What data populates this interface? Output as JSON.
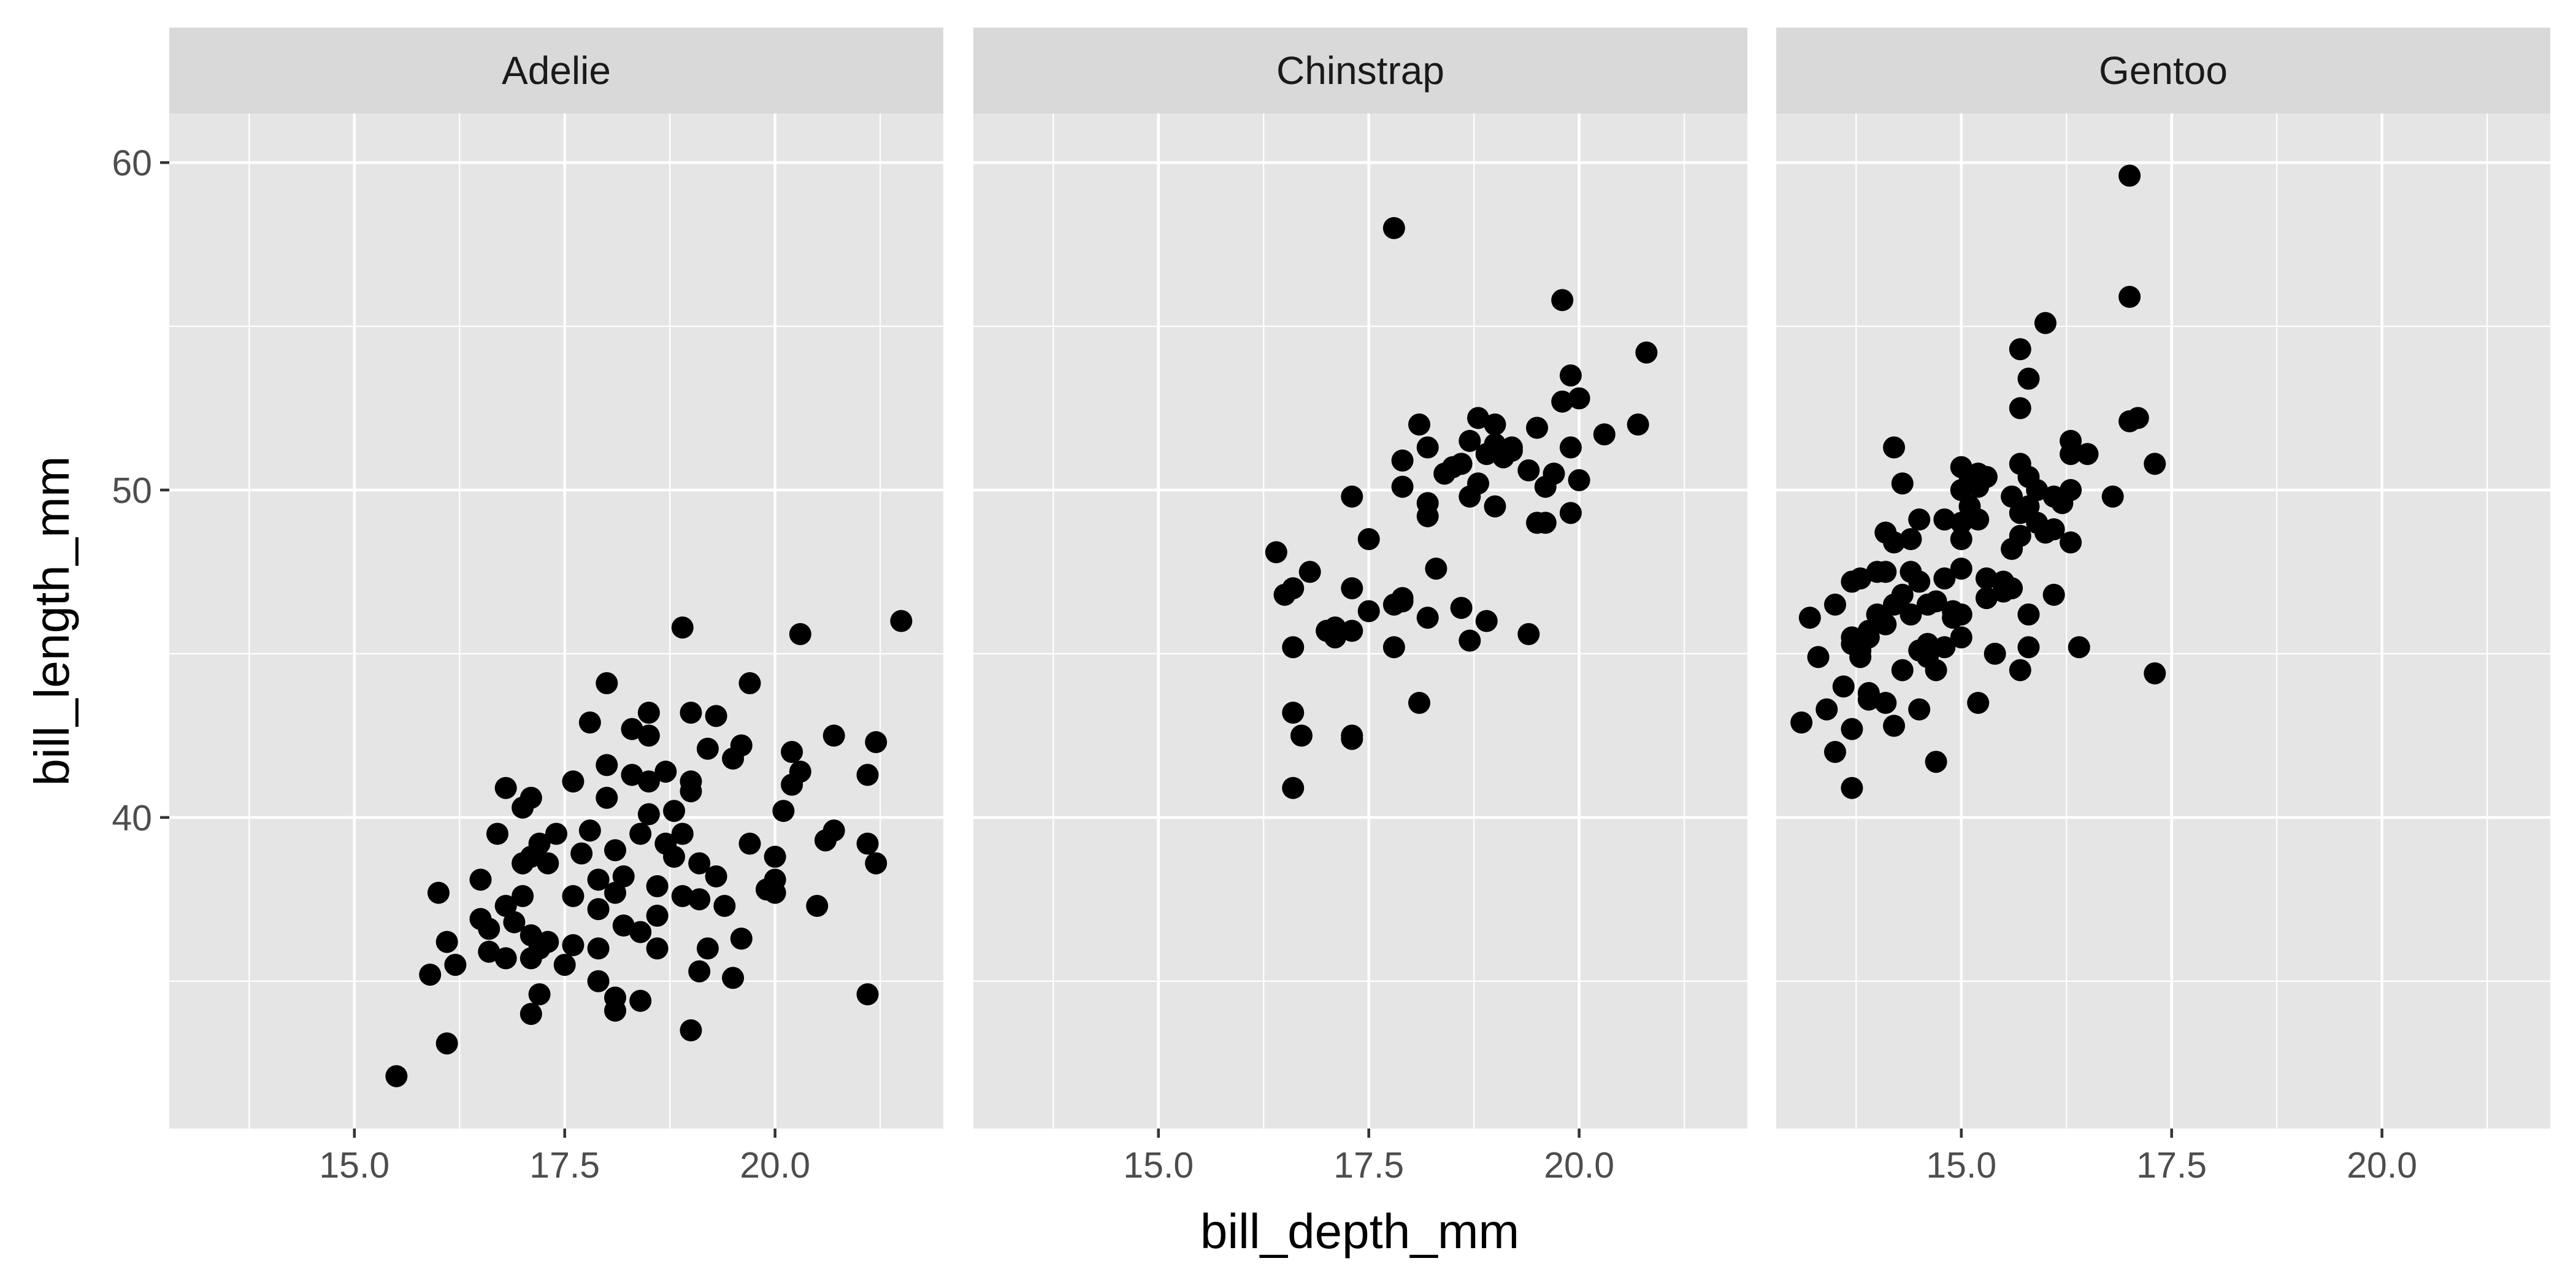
{
  "chart_data": {
    "type": "scatter",
    "xlabel": "bill_depth_mm",
    "ylabel": "bill_length_mm",
    "xlim": [
      12.8,
      22.0
    ],
    "ylim": [
      30.5,
      61.5
    ],
    "x_ticks": [
      15.0,
      17.5,
      20.0
    ],
    "x_tick_labels": [
      "15.0",
      "17.5",
      "20.0"
    ],
    "y_ticks": [
      40,
      50,
      60
    ],
    "y_tick_labels": [
      "40",
      "50",
      "60"
    ],
    "grid": true,
    "panel_background": "#e5e5e5",
    "strip_background": "#d9d9d9",
    "point_color": "#000000",
    "facets": [
      {
        "label": "Adelie",
        "points": [
          [
            15.5,
            32.1
          ],
          [
            16.1,
            33.1
          ],
          [
            15.9,
            35.2
          ],
          [
            16.2,
            35.5
          ],
          [
            16.1,
            36.2
          ],
          [
            16.0,
            37.7
          ],
          [
            16.5,
            36.9
          ],
          [
            16.5,
            38.1
          ],
          [
            16.6,
            35.9
          ],
          [
            16.6,
            36.6
          ],
          [
            16.8,
            37.3
          ],
          [
            16.9,
            36.8
          ],
          [
            16.8,
            35.7
          ],
          [
            16.7,
            39.5
          ],
          [
            16.8,
            40.9
          ],
          [
            17.0,
            40.3
          ],
          [
            17.1,
            40.6
          ],
          [
            17.0,
            38.6
          ],
          [
            17.0,
            37.6
          ],
          [
            17.1,
            36.4
          ],
          [
            17.2,
            36.0
          ],
          [
            17.1,
            35.7
          ],
          [
            17.2,
            34.6
          ],
          [
            17.1,
            34.0
          ],
          [
            17.3,
            36.2
          ],
          [
            17.1,
            38.8
          ],
          [
            17.2,
            39.2
          ],
          [
            17.3,
            38.6
          ],
          [
            17.4,
            39.5
          ],
          [
            17.6,
            41.1
          ],
          [
            17.5,
            35.5
          ],
          [
            17.6,
            36.1
          ],
          [
            17.6,
            37.6
          ],
          [
            17.7,
            38.9
          ],
          [
            17.8,
            39.6
          ],
          [
            17.9,
            38.1
          ],
          [
            17.8,
            42.9
          ],
          [
            17.9,
            37.2
          ],
          [
            17.9,
            36.0
          ],
          [
            17.9,
            35.0
          ],
          [
            18.0,
            40.6
          ],
          [
            18.0,
            41.6
          ],
          [
            18.0,
            44.1
          ],
          [
            18.1,
            39.0
          ],
          [
            18.1,
            37.7
          ],
          [
            18.2,
            36.7
          ],
          [
            18.1,
            34.5
          ],
          [
            18.1,
            34.1
          ],
          [
            18.3,
            41.3
          ],
          [
            18.3,
            42.7
          ],
          [
            18.2,
            38.2
          ],
          [
            18.4,
            36.5
          ],
          [
            18.4,
            34.4
          ],
          [
            18.4,
            39.5
          ],
          [
            18.5,
            40.1
          ],
          [
            18.5,
            41.1
          ],
          [
            18.5,
            43.2
          ],
          [
            18.5,
            42.5
          ],
          [
            18.6,
            37.9
          ],
          [
            18.6,
            37.0
          ],
          [
            18.6,
            36.0
          ],
          [
            18.7,
            39.2
          ],
          [
            18.7,
            41.4
          ],
          [
            18.8,
            40.2
          ],
          [
            18.8,
            38.8
          ],
          [
            18.9,
            37.6
          ],
          [
            18.9,
            39.5
          ],
          [
            18.9,
            45.8
          ],
          [
            19.0,
            40.8
          ],
          [
            19.0,
            41.1
          ],
          [
            19.0,
            43.2
          ],
          [
            19.1,
            38.6
          ],
          [
            19.1,
            37.5
          ],
          [
            19.1,
            35.3
          ],
          [
            19.0,
            33.5
          ],
          [
            19.2,
            42.1
          ],
          [
            19.2,
            36.0
          ],
          [
            19.3,
            43.1
          ],
          [
            19.3,
            38.2
          ],
          [
            19.4,
            37.3
          ],
          [
            19.5,
            41.8
          ],
          [
            19.5,
            35.1
          ],
          [
            19.6,
            36.3
          ],
          [
            19.6,
            42.2
          ],
          [
            19.7,
            39.2
          ],
          [
            19.7,
            44.1
          ],
          [
            19.9,
            37.8
          ],
          [
            20.0,
            38.1
          ],
          [
            20.0,
            37.7
          ],
          [
            20.0,
            38.8
          ],
          [
            20.1,
            40.2
          ],
          [
            20.2,
            41.0
          ],
          [
            20.3,
            41.4
          ],
          [
            20.2,
            42.0
          ],
          [
            20.3,
            45.6
          ],
          [
            20.5,
            37.3
          ],
          [
            20.6,
            39.3
          ],
          [
            20.7,
            42.5
          ],
          [
            20.7,
            39.6
          ],
          [
            21.1,
            34.6
          ],
          [
            21.1,
            39.2
          ],
          [
            21.1,
            41.3
          ],
          [
            21.2,
            42.3
          ],
          [
            21.2,
            38.6
          ],
          [
            21.5,
            46.0
          ]
        ]
      },
      {
        "label": "Chinstrap",
        "points": [
          [
            16.4,
            48.1
          ],
          [
            16.5,
            46.8
          ],
          [
            16.6,
            47.0
          ],
          [
            16.6,
            45.2
          ],
          [
            16.6,
            43.2
          ],
          [
            16.6,
            40.9
          ],
          [
            16.7,
            42.5
          ],
          [
            16.8,
            47.5
          ],
          [
            17.0,
            45.7
          ],
          [
            17.1,
            45.8
          ],
          [
            17.1,
            45.5
          ],
          [
            17.3,
            45.7
          ],
          [
            17.3,
            47.0
          ],
          [
            17.3,
            49.8
          ],
          [
            17.3,
            42.5
          ],
          [
            17.3,
            42.4
          ],
          [
            17.5,
            48.5
          ],
          [
            17.5,
            46.3
          ],
          [
            17.8,
            46.5
          ],
          [
            17.8,
            45.2
          ],
          [
            17.8,
            58.0
          ],
          [
            17.9,
            46.6
          ],
          [
            17.9,
            46.7
          ],
          [
            17.9,
            50.1
          ],
          [
            17.9,
            50.9
          ],
          [
            18.1,
            43.5
          ],
          [
            18.1,
            52.0
          ],
          [
            18.2,
            51.3
          ],
          [
            18.2,
            49.6
          ],
          [
            18.2,
            49.2
          ],
          [
            18.2,
            46.1
          ],
          [
            18.3,
            47.6
          ],
          [
            18.4,
            50.5
          ],
          [
            18.5,
            50.7
          ],
          [
            18.6,
            50.8
          ],
          [
            18.6,
            46.4
          ],
          [
            18.7,
            49.8
          ],
          [
            18.7,
            51.5
          ],
          [
            18.7,
            45.4
          ],
          [
            18.8,
            50.2
          ],
          [
            18.8,
            52.2
          ],
          [
            18.9,
            51.1
          ],
          [
            18.9,
            46.0
          ],
          [
            19.0,
            52.0
          ],
          [
            19.0,
            51.4
          ],
          [
            19.0,
            49.5
          ],
          [
            19.1,
            51.0
          ],
          [
            19.2,
            51.2
          ],
          [
            19.2,
            51.3
          ],
          [
            19.4,
            50.6
          ],
          [
            19.4,
            45.6
          ],
          [
            19.5,
            51.9
          ],
          [
            19.5,
            49.0
          ],
          [
            19.6,
            49.0
          ],
          [
            19.6,
            50.1
          ],
          [
            19.7,
            50.5
          ],
          [
            19.8,
            55.8
          ],
          [
            19.8,
            52.7
          ],
          [
            19.9,
            53.5
          ],
          [
            19.9,
            51.3
          ],
          [
            19.9,
            49.3
          ],
          [
            20.0,
            52.8
          ],
          [
            20.0,
            50.3
          ],
          [
            20.3,
            51.7
          ],
          [
            20.7,
            52.0
          ],
          [
            20.8,
            54.2
          ]
        ]
      },
      {
        "label": "Gentoo",
        "points": [
          [
            13.1,
            42.9
          ],
          [
            13.2,
            46.1
          ],
          [
            13.3,
            44.9
          ],
          [
            13.4,
            43.3
          ],
          [
            13.5,
            46.5
          ],
          [
            13.5,
            42.0
          ],
          [
            13.6,
            44.0
          ],
          [
            13.7,
            47.2
          ],
          [
            13.7,
            45.5
          ],
          [
            13.7,
            45.3
          ],
          [
            13.7,
            42.7
          ],
          [
            13.7,
            40.9
          ],
          [
            13.8,
            47.3
          ],
          [
            13.8,
            45.1
          ],
          [
            13.8,
            44.9
          ],
          [
            13.9,
            45.5
          ],
          [
            13.9,
            45.7
          ],
          [
            13.9,
            43.8
          ],
          [
            13.9,
            43.6
          ],
          [
            14.0,
            47.5
          ],
          [
            14.0,
            46.2
          ],
          [
            14.1,
            48.7
          ],
          [
            14.1,
            47.5
          ],
          [
            14.1,
            45.9
          ],
          [
            14.1,
            43.5
          ],
          [
            14.2,
            51.3
          ],
          [
            14.2,
            48.4
          ],
          [
            14.2,
            46.5
          ],
          [
            14.2,
            42.8
          ],
          [
            14.3,
            50.2
          ],
          [
            14.3,
            46.8
          ],
          [
            14.3,
            44.5
          ],
          [
            14.4,
            48.5
          ],
          [
            14.4,
            47.5
          ],
          [
            14.4,
            46.2
          ],
          [
            14.5,
            47.2
          ],
          [
            14.5,
            45.1
          ],
          [
            14.5,
            43.3
          ],
          [
            14.5,
            49.1
          ],
          [
            14.6,
            46.5
          ],
          [
            14.6,
            45.3
          ],
          [
            14.6,
            44.9
          ],
          [
            14.7,
            46.6
          ],
          [
            14.7,
            44.5
          ],
          [
            14.7,
            41.7
          ],
          [
            14.8,
            47.3
          ],
          [
            14.8,
            45.2
          ],
          [
            14.8,
            49.1
          ],
          [
            14.9,
            46.3
          ],
          [
            14.9,
            46.1
          ],
          [
            15.0,
            50.7
          ],
          [
            15.0,
            50.0
          ],
          [
            15.0,
            49.0
          ],
          [
            15.0,
            48.5
          ],
          [
            15.0,
            47.6
          ],
          [
            15.0,
            46.2
          ],
          [
            15.0,
            45.5
          ],
          [
            15.1,
            50.4
          ],
          [
            15.1,
            49.5
          ],
          [
            15.2,
            50.5
          ],
          [
            15.2,
            50.1
          ],
          [
            15.2,
            49.1
          ],
          [
            15.2,
            43.5
          ],
          [
            15.3,
            50.4
          ],
          [
            15.3,
            47.3
          ],
          [
            15.3,
            46.7
          ],
          [
            15.4,
            45.0
          ],
          [
            15.5,
            47.2
          ],
          [
            15.5,
            46.9
          ],
          [
            15.6,
            49.8
          ],
          [
            15.6,
            48.2
          ],
          [
            15.6,
            47.0
          ],
          [
            15.7,
            54.3
          ],
          [
            15.7,
            50.8
          ],
          [
            15.7,
            49.3
          ],
          [
            15.7,
            48.6
          ],
          [
            15.7,
            44.5
          ],
          [
            15.8,
            53.4
          ],
          [
            15.8,
            50.4
          ],
          [
            15.8,
            49.5
          ],
          [
            15.8,
            46.2
          ],
          [
            15.8,
            45.2
          ],
          [
            15.9,
            50.0
          ],
          [
            15.9,
            49.0
          ],
          [
            16.0,
            55.1
          ],
          [
            16.0,
            48.7
          ],
          [
            16.1,
            49.8
          ],
          [
            16.1,
            48.8
          ],
          [
            16.1,
            46.8
          ],
          [
            16.2,
            49.6
          ],
          [
            16.3,
            51.5
          ],
          [
            16.3,
            51.1
          ],
          [
            16.3,
            50.0
          ],
          [
            16.3,
            48.4
          ],
          [
            16.4,
            45.2
          ],
          [
            16.5,
            51.1
          ],
          [
            16.8,
            49.8
          ],
          [
            17.0,
            59.6
          ],
          [
            17.0,
            55.9
          ],
          [
            17.0,
            52.1
          ],
          [
            17.1,
            52.2
          ],
          [
            17.3,
            50.8
          ],
          [
            17.3,
            44.4
          ],
          [
            15.7,
            52.5
          ]
        ]
      }
    ]
  }
}
